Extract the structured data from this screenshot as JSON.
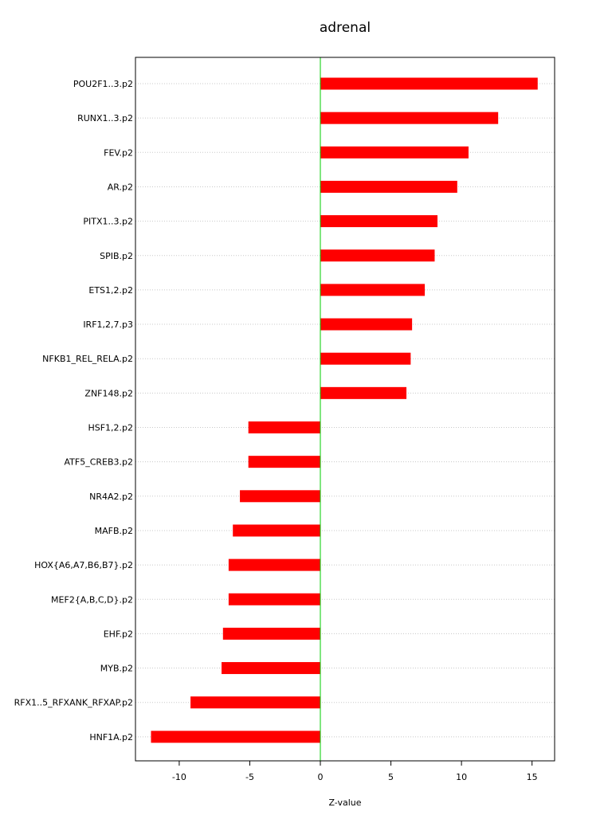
{
  "chart_data": {
    "type": "bar",
    "orientation": "horizontal",
    "title": "adrenal",
    "xlabel": "Z-value",
    "ylabel": "",
    "xlim": [
      -13.1,
      16.6
    ],
    "x_ticks": [
      -10,
      -5,
      0,
      5,
      10,
      15
    ],
    "grid": "dotted horizontal lines at each category",
    "reference_line": {
      "value": 0,
      "color": "#00cc00"
    },
    "bar_color": "#ff0000",
    "categories": [
      "POU2F1..3.p2",
      "RUNX1..3.p2",
      "FEV.p2",
      "AR.p2",
      "PITX1..3.p2",
      "SPIB.p2",
      "ETS1,2.p2",
      "IRF1,2,7.p3",
      "NFKB1_REL_RELA.p2",
      "ZNF148.p2",
      "HSF1,2.p2",
      "ATF5_CREB3.p2",
      "NR4A2.p2",
      "MAFB.p2",
      "HOX{A6,A7,B6,B7}.p2",
      "MEF2{A,B,C,D}.p2",
      "EHF.p2",
      "MYB.p2",
      "RFX1..5_RFXANK_RFXAP.p2",
      "HNF1A.p2"
    ],
    "values": [
      15.4,
      12.6,
      10.5,
      9.7,
      8.3,
      8.1,
      7.4,
      6.5,
      6.4,
      6.1,
      -5.1,
      -5.1,
      -5.7,
      -6.2,
      -6.5,
      -6.5,
      -6.9,
      -7.0,
      -9.2,
      -12.0
    ]
  }
}
